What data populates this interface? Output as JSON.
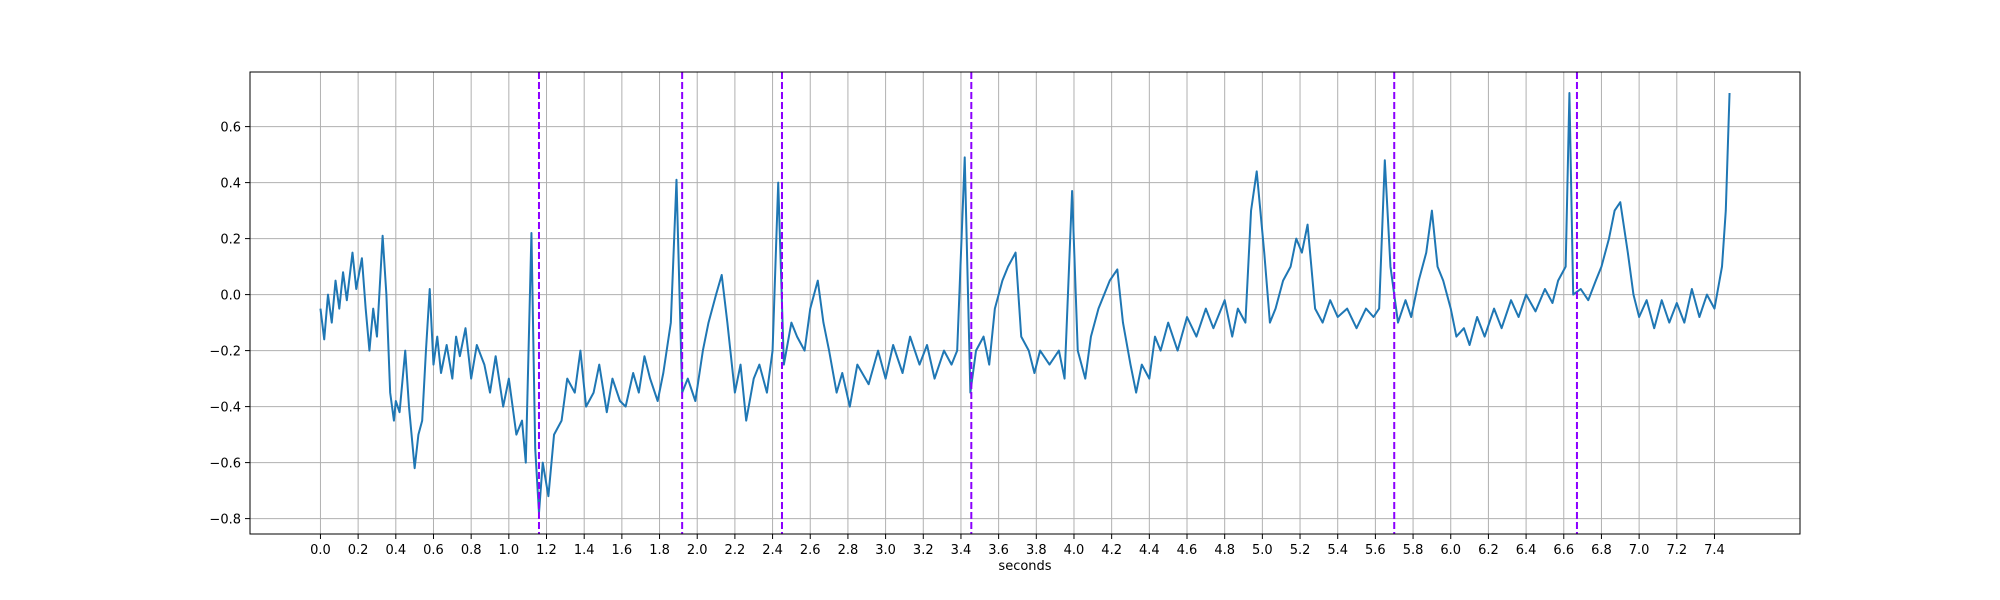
{
  "chart_data": {
    "type": "line",
    "xlabel": "seconds",
    "grid": true,
    "x": [
      0.0,
      0.02,
      0.04,
      0.06,
      0.08,
      0.1,
      0.12,
      0.14,
      0.17,
      0.19,
      0.22,
      0.24,
      0.26,
      0.28,
      0.3,
      0.33,
      0.35,
      0.37,
      0.39,
      0.4,
      0.42,
      0.45,
      0.47,
      0.5,
      0.52,
      0.54,
      0.56,
      0.58,
      0.6,
      0.62,
      0.64,
      0.67,
      0.7,
      0.72,
      0.74,
      0.77,
      0.8,
      0.83,
      0.87,
      0.9,
      0.93,
      0.97,
      1.0,
      1.04,
      1.07,
      1.09,
      1.12,
      1.14,
      1.16,
      1.18,
      1.21,
      1.24,
      1.28,
      1.31,
      1.35,
      1.38,
      1.41,
      1.45,
      1.48,
      1.52,
      1.55,
      1.59,
      1.62,
      1.66,
      1.69,
      1.72,
      1.75,
      1.79,
      1.82,
      1.86,
      1.89,
      1.92,
      1.95,
      1.99,
      2.03,
      2.06,
      2.1,
      2.13,
      2.16,
      2.2,
      2.23,
      2.26,
      2.3,
      2.33,
      2.37,
      2.4,
      2.43,
      2.46,
      2.5,
      2.53,
      2.57,
      2.6,
      2.64,
      2.67,
      2.7,
      2.74,
      2.77,
      2.81,
      2.85,
      2.91,
      2.96,
      3.0,
      3.04,
      3.09,
      3.13,
      3.18,
      3.22,
      3.26,
      3.31,
      3.35,
      3.38,
      3.42,
      3.45,
      3.48,
      3.52,
      3.55,
      3.58,
      3.62,
      3.65,
      3.69,
      3.72,
      3.76,
      3.79,
      3.82,
      3.87,
      3.92,
      3.95,
      3.99,
      4.02,
      4.06,
      4.09,
      4.13,
      4.16,
      4.19,
      4.23,
      4.26,
      4.3,
      4.33,
      4.36,
      4.4,
      4.43,
      4.46,
      4.5,
      4.55,
      4.6,
      4.65,
      4.7,
      4.74,
      4.8,
      4.84,
      4.87,
      4.91,
      4.94,
      4.97,
      5.01,
      5.04,
      5.07,
      5.11,
      5.15,
      5.18,
      5.21,
      5.24,
      5.28,
      5.32,
      5.36,
      5.4,
      5.45,
      5.5,
      5.55,
      5.59,
      5.62,
      5.65,
      5.68,
      5.72,
      5.76,
      5.79,
      5.83,
      5.87,
      5.9,
      5.93,
      5.96,
      6.0,
      6.03,
      6.07,
      6.1,
      6.14,
      6.18,
      6.23,
      6.27,
      6.32,
      6.36,
      6.4,
      6.45,
      6.5,
      6.54,
      6.57,
      6.61,
      6.63,
      6.65,
      6.69,
      6.73,
      6.77,
      6.8,
      6.84,
      6.87,
      6.9,
      6.94,
      6.97,
      7.0,
      7.04,
      7.08,
      7.12,
      7.16,
      7.2,
      7.24,
      7.28,
      7.32,
      7.36,
      7.4,
      7.44,
      7.46,
      7.48
    ],
    "series": [
      {
        "color": "#1f77b4",
        "values": [
          -0.05,
          -0.16,
          0.0,
          -0.1,
          0.05,
          -0.05,
          0.08,
          -0.02,
          0.15,
          0.02,
          0.13,
          -0.05,
          -0.2,
          -0.05,
          -0.15,
          0.21,
          0.0,
          -0.35,
          -0.45,
          -0.38,
          -0.42,
          -0.2,
          -0.4,
          -0.62,
          -0.5,
          -0.45,
          -0.2,
          0.02,
          -0.25,
          -0.15,
          -0.28,
          -0.18,
          -0.3,
          -0.15,
          -0.22,
          -0.12,
          -0.3,
          -0.18,
          -0.25,
          -0.35,
          -0.22,
          -0.4,
          -0.3,
          -0.5,
          -0.45,
          -0.6,
          0.22,
          -0.55,
          -0.78,
          -0.6,
          -0.72,
          -0.5,
          -0.45,
          -0.3,
          -0.35,
          -0.2,
          -0.4,
          -0.35,
          -0.25,
          -0.42,
          -0.3,
          -0.38,
          -0.4,
          -0.28,
          -0.35,
          -0.22,
          -0.3,
          -0.38,
          -0.28,
          -0.1,
          0.41,
          -0.35,
          -0.3,
          -0.38,
          -0.2,
          -0.1,
          0.0,
          0.07,
          -0.1,
          -0.35,
          -0.25,
          -0.45,
          -0.3,
          -0.25,
          -0.35,
          -0.2,
          0.4,
          -0.25,
          -0.1,
          -0.15,
          -0.2,
          -0.05,
          0.05,
          -0.1,
          -0.2,
          -0.35,
          -0.28,
          -0.4,
          -0.25,
          -0.32,
          -0.2,
          -0.3,
          -0.18,
          -0.28,
          -0.15,
          -0.25,
          -0.18,
          -0.3,
          -0.2,
          -0.25,
          -0.2,
          0.49,
          -0.35,
          -0.2,
          -0.15,
          -0.25,
          -0.05,
          0.05,
          0.1,
          0.15,
          -0.15,
          -0.2,
          -0.28,
          -0.2,
          -0.25,
          -0.2,
          -0.3,
          0.37,
          -0.2,
          -0.3,
          -0.15,
          -0.05,
          0.0,
          0.05,
          0.09,
          -0.1,
          -0.25,
          -0.35,
          -0.25,
          -0.3,
          -0.15,
          -0.2,
          -0.1,
          -0.2,
          -0.08,
          -0.15,
          -0.05,
          -0.12,
          -0.02,
          -0.15,
          -0.05,
          -0.1,
          0.3,
          0.44,
          0.15,
          -0.1,
          -0.05,
          0.05,
          0.1,
          0.2,
          0.15,
          0.25,
          -0.05,
          -0.1,
          -0.02,
          -0.08,
          -0.05,
          -0.12,
          -0.05,
          -0.08,
          -0.05,
          0.48,
          0.1,
          -0.1,
          -0.02,
          -0.08,
          0.05,
          0.15,
          0.3,
          0.1,
          0.05,
          -0.05,
          -0.15,
          -0.12,
          -0.18,
          -0.08,
          -0.15,
          -0.05,
          -0.12,
          -0.02,
          -0.08,
          0.0,
          -0.06,
          0.02,
          -0.03,
          0.05,
          0.1,
          0.72,
          0.0,
          0.02,
          -0.02,
          0.05,
          0.1,
          0.2,
          0.3,
          0.33,
          0.15,
          0.0,
          -0.08,
          -0.02,
          -0.12,
          -0.02,
          -0.1,
          -0.03,
          -0.1,
          0.02,
          -0.08,
          0.0,
          -0.05,
          0.1,
          0.3,
          0.72
        ]
      }
    ],
    "vlines": {
      "x": [
        1.16,
        1.92,
        2.45,
        3.455,
        5.7,
        6.67
      ],
      "color": "#8b00ff",
      "style": "dashed"
    },
    "xlim": [
      -0.374,
      7.854
    ],
    "ylim": [
      -0.855,
      0.795
    ],
    "xticks": [
      {
        "value": 0,
        "label": "0.0"
      },
      0.2,
      0.4,
      0.6,
      0.8,
      {
        "value": 1,
        "label": "1.0"
      },
      1.2,
      1.4,
      1.6,
      1.8,
      {
        "value": 2,
        "label": "2.0"
      },
      2.2,
      2.4,
      2.6,
      2.8,
      {
        "value": 3,
        "label": "3.0"
      },
      3.2,
      3.4,
      3.6,
      3.8,
      {
        "value": 4,
        "label": "4.0"
      },
      4.2,
      4.4,
      4.6,
      4.8,
      {
        "value": 5,
        "label": "5.0"
      },
      5.2,
      5.4,
      5.6,
      5.8,
      {
        "value": 6,
        "label": "6.0"
      },
      6.2,
      6.4,
      6.6,
      6.8,
      {
        "value": 7,
        "label": "7.0"
      },
      7.2,
      7.4
    ],
    "yticks": [
      {
        "value": -0.8,
        "label": "−0.8"
      },
      {
        "value": -0.6,
        "label": "−0.6"
      },
      {
        "value": -0.4,
        "label": "−0.4"
      },
      {
        "value": -0.2,
        "label": "−0.2"
      },
      {
        "value": 0,
        "label": "0.0"
      },
      0.2,
      0.4,
      0.6
    ]
  }
}
